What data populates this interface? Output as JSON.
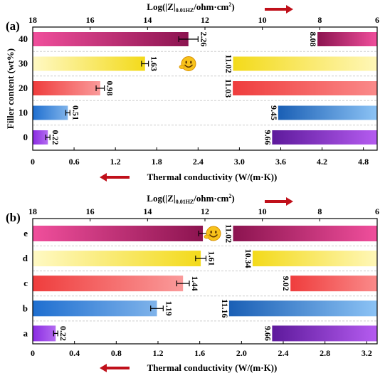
{
  "chart_data": [
    {
      "type": "bar",
      "panel_label": "(a)",
      "ylabel": "Filler content (wt%)",
      "categories": [
        "0",
        "10",
        "20",
        "30",
        "40"
      ],
      "series": [
        {
          "axis": "bottom",
          "values": [
            0.22,
            0.51,
            0.98,
            1.63,
            2.26
          ],
          "error": [
            0.03,
            0.03,
            0.06,
            0.05,
            0.14
          ],
          "colors": [
            [
              "#8a2be2",
              "#b46cf0"
            ],
            [
              "#1f6fd0",
              "#7fb3ea"
            ],
            [
              "#ef3d3d",
              "#fa9a9a"
            ],
            [
              "#fff9c4",
              "#f3da1a"
            ],
            [
              "#f04f9c",
              "#8c1450"
            ]
          ]
        },
        {
          "axis": "top",
          "values": [
            9.66,
            9.45,
            11.03,
            11.02,
            8.08
          ],
          "colors": [
            [
              "#5e1a9c",
              "#b55cf0"
            ],
            [
              "#1a5fb5",
              "#8cc3f5"
            ],
            [
              "#ef3d3d",
              "#fa8a8a"
            ],
            [
              "#f3da1a",
              "#fff7b8"
            ],
            [
              "#8c1450",
              "#f04f9c"
            ]
          ]
        }
      ],
      "xlabel": "Thermal conductivity (W/(m·K))",
      "xlim": [
        0,
        5.0
      ],
      "xticks": [
        "0",
        "0.6",
        "1.2",
        "1.8",
        "2.4",
        "3.0",
        "3.6",
        "4.2",
        "4.8"
      ],
      "xticks_values": [
        0,
        0.6,
        1.2,
        1.8,
        2.4,
        3.0,
        3.6,
        4.2,
        4.8
      ],
      "x2label": "Log(|Z|0.01HZ/ohm·cm2)",
      "x2lim": [
        18,
        6
      ],
      "x2ticks": [
        "18",
        "16",
        "14",
        "12",
        "10",
        "8",
        "6"
      ],
      "x2ticks_values": [
        18,
        16,
        14,
        12,
        10,
        8,
        6
      ],
      "arrow_color": "#c0101a",
      "smiley_row": "30"
    },
    {
      "type": "bar",
      "panel_label": "(b)",
      "categories": [
        "a",
        "b",
        "c",
        "d",
        "e"
      ],
      "series": [
        {
          "axis": "bottom",
          "values": [
            0.22,
            1.19,
            1.44,
            1.61,
            1.63
          ],
          "error": [
            0.02,
            0.06,
            0.06,
            0.05,
            0.04
          ],
          "colors": [
            [
              "#8a2be2",
              "#b46cf0"
            ],
            [
              "#1f6fd0",
              "#7fb3ea"
            ],
            [
              "#ef3d3d",
              "#fa9a9a"
            ],
            [
              "#fff9c4",
              "#f3da1a"
            ],
            [
              "#f04f9c",
              "#8c1450"
            ]
          ]
        },
        {
          "axis": "top",
          "values": [
            9.66,
            11.16,
            9.02,
            10.34,
            11.02
          ],
          "colors": [
            [
              "#5e1a9c",
              "#b55cf0"
            ],
            [
              "#1a5fb5",
              "#8cc3f5"
            ],
            [
              "#ef3d3d",
              "#fa8a8a"
            ],
            [
              "#f3da1a",
              "#fff7b8"
            ],
            [
              "#8c1450",
              "#f04f9c"
            ]
          ]
        }
      ],
      "xlabel": "Thermal conductivity (W/(m·K))",
      "xlim": [
        0,
        3.3
      ],
      "xticks": [
        "0",
        "0.4",
        "0.8",
        "1.2",
        "1.6",
        "2.0",
        "2.4",
        "2.8",
        "3.2"
      ],
      "xticks_values": [
        0,
        0.4,
        0.8,
        1.2,
        1.6,
        2.0,
        2.4,
        2.8,
        3.2
      ],
      "x2label": "Log(|Z|0.01HZ/ohm·cm2)",
      "x2lim": [
        18,
        6
      ],
      "x2ticks": [
        "18",
        "16",
        "14",
        "12",
        "10",
        "8",
        "6"
      ],
      "x2ticks_values": [
        18,
        16,
        14,
        12,
        10,
        8,
        6
      ],
      "arrow_color": "#c0101a",
      "smiley_row": "e"
    }
  ]
}
